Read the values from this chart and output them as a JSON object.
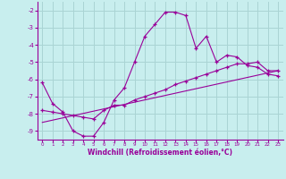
{
  "xlabel": "Windchill (Refroidissement éolien,°C)",
  "bg_color": "#c8eeee",
  "grid_color": "#aad4d4",
  "line_color": "#990099",
  "xmin": 0,
  "xmax": 23,
  "ymin": -9.5,
  "ymax": -1.5,
  "yticks": [
    -2,
    -3,
    -4,
    -5,
    -6,
    -7,
    -8,
    -9
  ],
  "xticks": [
    0,
    1,
    2,
    3,
    4,
    5,
    6,
    7,
    8,
    9,
    10,
    11,
    12,
    13,
    14,
    15,
    16,
    17,
    18,
    19,
    20,
    21,
    22,
    23
  ],
  "line1_x": [
    0,
    1,
    2,
    3,
    4,
    5,
    6,
    7,
    8,
    9,
    10,
    11,
    12,
    13,
    14,
    15,
    16,
    17,
    18,
    19,
    20,
    21,
    22,
    23
  ],
  "line1_y": [
    -6.2,
    -7.4,
    -7.9,
    -9.0,
    -9.3,
    -9.3,
    -8.5,
    -7.2,
    -6.5,
    -5.0,
    -3.5,
    -2.8,
    -2.1,
    -2.1,
    -2.3,
    -4.2,
    -3.5,
    -5.0,
    -4.6,
    -4.7,
    -5.2,
    -5.3,
    -5.7,
    -5.8
  ],
  "line2_x": [
    0,
    1,
    2,
    3,
    4,
    5,
    6,
    7,
    8,
    9,
    10,
    11,
    12,
    13,
    14,
    15,
    16,
    17,
    18,
    19,
    20,
    21,
    22,
    23
  ],
  "line2_y": [
    -7.8,
    -7.9,
    -8.0,
    -8.1,
    -8.2,
    -8.3,
    -7.8,
    -7.5,
    -7.5,
    -7.2,
    -7.0,
    -6.8,
    -6.6,
    -6.3,
    -6.1,
    -5.9,
    -5.7,
    -5.5,
    -5.3,
    -5.1,
    -5.1,
    -5.0,
    -5.5,
    -5.5
  ],
  "line3_x": [
    0,
    23
  ],
  "line3_y": [
    -8.5,
    -5.5
  ]
}
